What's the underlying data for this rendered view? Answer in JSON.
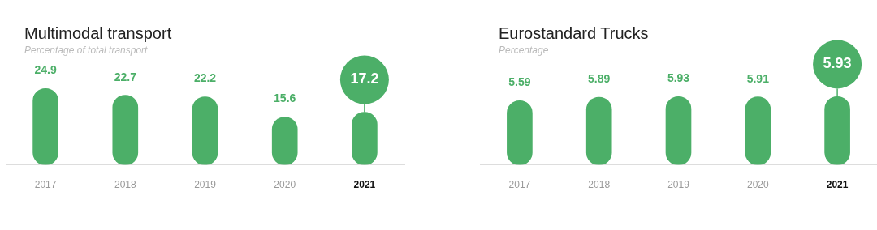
{
  "chart_data": [
    {
      "type": "bar",
      "title": "Multimodal transport",
      "subtitle": "Percentage of total transport",
      "categories": [
        "2017",
        "2018",
        "2019",
        "2020",
        "2021"
      ],
      "series": [
        {
          "color": "#4caf68",
          "values": [
            24.9,
            22.7,
            22.2,
            15.6,
            17.2
          ]
        }
      ],
      "data_labels": true,
      "grid": false,
      "legend": false
    },
    {
      "type": "bar",
      "title": "Eurostandard Trucks",
      "subtitle": "Percentage",
      "categories": [
        "2017",
        "2018",
        "2019",
        "2020",
        "2021"
      ],
      "series": [
        {
          "color": "#4caf68",
          "values": [
            5.59,
            5.89,
            5.93,
            5.91,
            5.93
          ]
        }
      ],
      "data_labels": true,
      "grid": false,
      "legend": false
    }
  ]
}
